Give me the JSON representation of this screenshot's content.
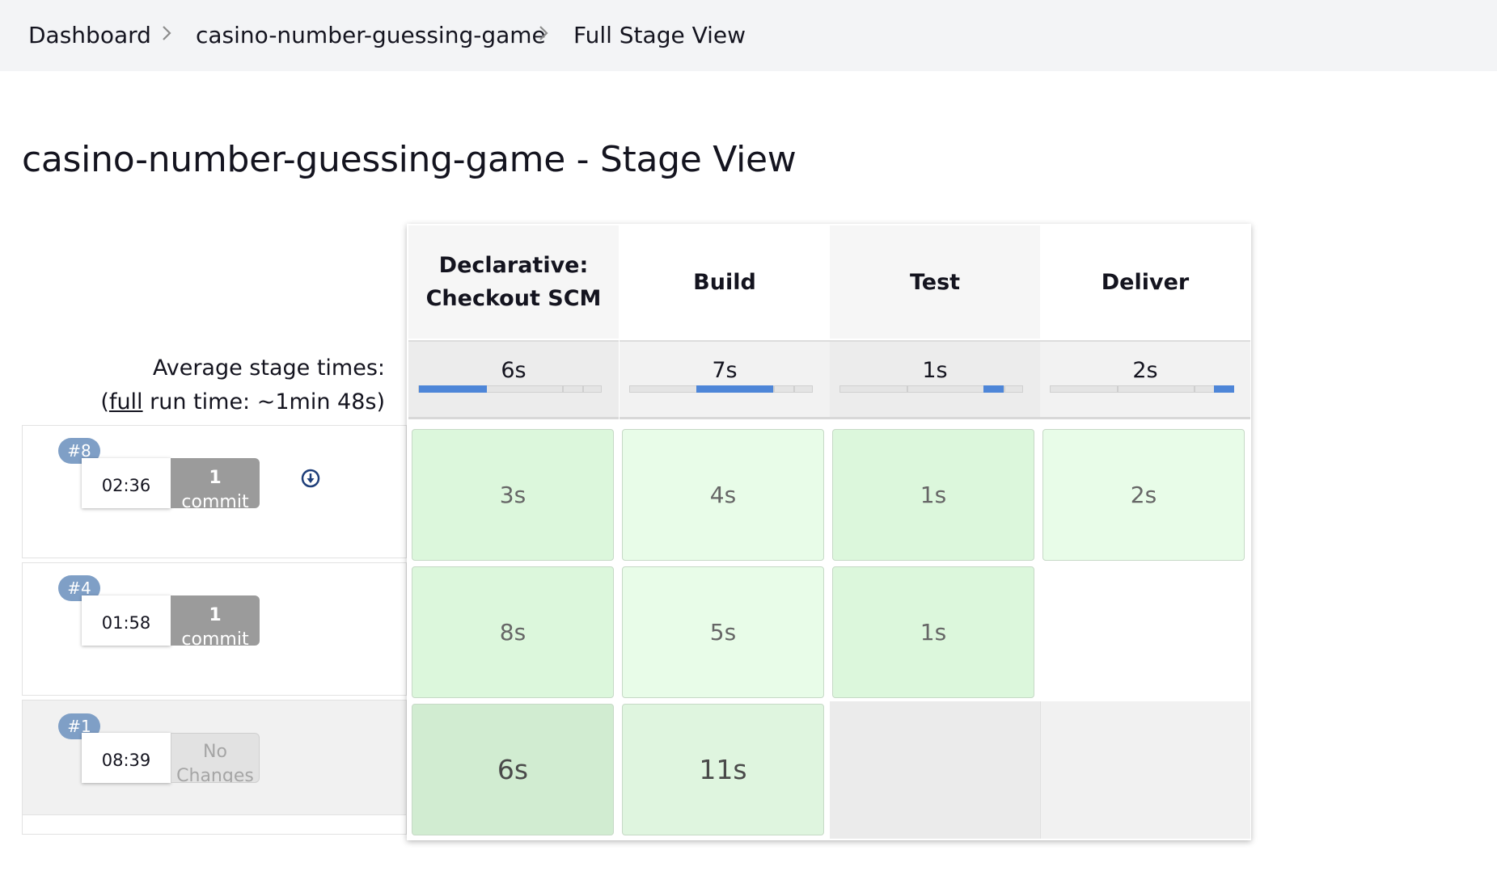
{
  "breadcrumb": {
    "items": [
      "Dashboard",
      "casino-number-guessing-game",
      "Full Stage View"
    ]
  },
  "page": {
    "title": "casino-number-guessing-game - Stage View"
  },
  "average": {
    "label": "Average stage times:",
    "run_prefix": "(",
    "run_link": "full",
    "run_suffix": " run time: ~1min 48s)"
  },
  "stages": [
    {
      "line1": "Declarative:",
      "line2": "Checkout SCM",
      "avg": "6s",
      "bar_start": 0.0,
      "bar_end": 0.37
    },
    {
      "line1": "Build",
      "line2": "",
      "avg": "7s",
      "bar_start": 0.36,
      "bar_end": 0.78
    },
    {
      "line1": "Test",
      "line2": "",
      "avg": "1s",
      "bar_start": 0.78,
      "bar_end": 0.89
    },
    {
      "line1": "Deliver",
      "line2": "",
      "avg": "2s",
      "bar_start": 0.89,
      "bar_end": 1.0
    }
  ],
  "runs": [
    {
      "badge": "#8",
      "time": "02:36",
      "changes_line1": "1",
      "changes_line2": "commit",
      "cells": [
        "3s",
        "4s",
        "1s",
        "2s"
      ]
    },
    {
      "badge": "#4",
      "time": "01:58",
      "changes_line1": "1",
      "changes_line2": "commit",
      "cells": [
        "8s",
        "5s",
        "1s"
      ]
    },
    {
      "badge": "#1",
      "time": "08:39",
      "changes_line1": "No",
      "changes_line2": "Changes",
      "cells": [
        "6s",
        "11s"
      ]
    }
  ],
  "colors": {
    "success_cell": "#dcf7dc",
    "badge": "#7f9fc6",
    "avg_bar": "#4e86d8"
  },
  "icons": {
    "download": "download-icon",
    "separator": "chevron-right-icon"
  }
}
